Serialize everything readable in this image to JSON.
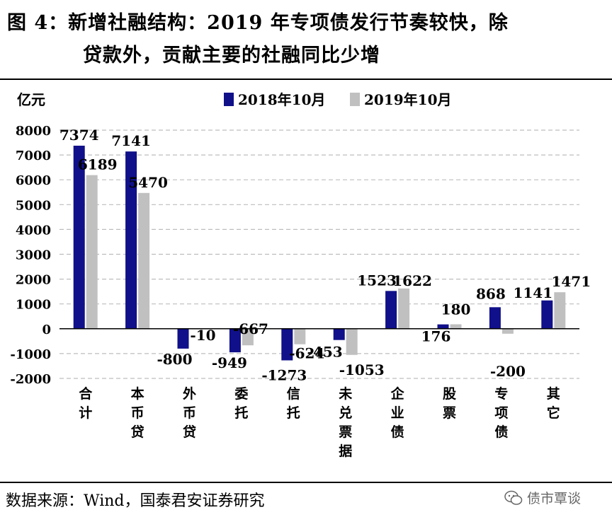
{
  "title": {
    "line1": "图 4：新增社融结构：2019 年专项债发行节奏较快，除",
    "line2": "贷款外，贡献主要的社融同比少增"
  },
  "source": "数据来源：Wind，国泰君安证券研究",
  "watermark": "债市覃谈",
  "colors": {
    "series1": "#10108a",
    "series2": "#c0c0c0",
    "grid": "#bdbdbd"
  },
  "chart_data": {
    "type": "bar",
    "ylabel": "亿元",
    "ylim": [
      -2000,
      8000
    ],
    "yticks": [
      -2000,
      -1000,
      0,
      1000,
      2000,
      3000,
      4000,
      5000,
      6000,
      7000,
      8000
    ],
    "grid": true,
    "legend_position": "top-center",
    "categories": [
      "合计",
      "本币贷",
      "外币贷",
      "委托",
      "信托",
      "未兑票据",
      "企业债",
      "股票",
      "专项债",
      "其它"
    ],
    "series": [
      {
        "name": "2018年10月",
        "values": [
          7374,
          7141,
          -800,
          -949,
          -1273,
          -453,
          1523,
          176,
          868,
          1141
        ]
      },
      {
        "name": "2019年10月",
        "values": [
          6189,
          5470,
          -10,
          -667,
          -624,
          -1053,
          1622,
          180,
          -200,
          1471
        ]
      }
    ]
  }
}
